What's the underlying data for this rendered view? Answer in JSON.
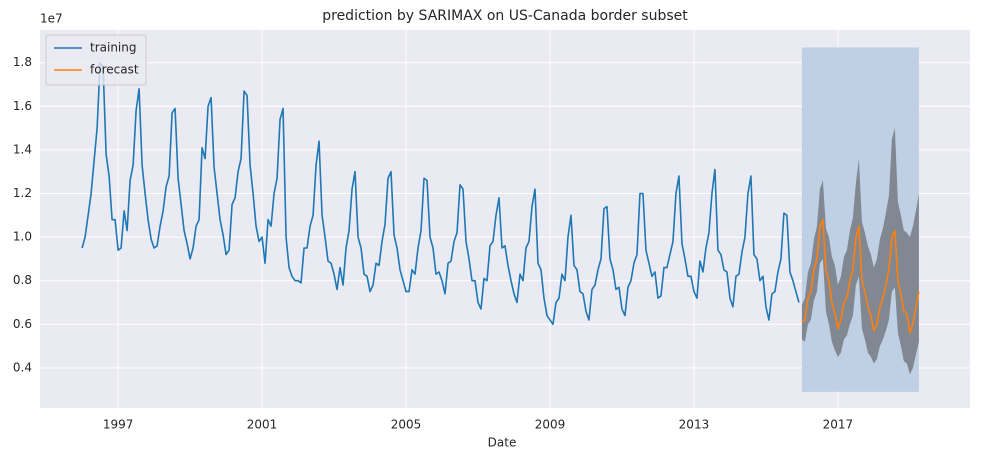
{
  "chart_data": {
    "type": "line",
    "title": "prediction by SARIMAX on US-Canada border subset",
    "x_label": "Date",
    "y_offset_label": "1e7",
    "xlim": [
      1994.83,
      2020.67
    ],
    "ylim": [
      0.216,
      1.95
    ],
    "xticks": [
      1997,
      2001,
      2005,
      2009,
      2013,
      2017
    ],
    "yticks": [
      0.4,
      0.6,
      0.8,
      {
        "value": 1,
        "label": "1.0"
      },
      1.2,
      1.4,
      1.6,
      1.8
    ],
    "grid": true,
    "legend": "upper left",
    "series": [
      {
        "name": "training",
        "color": "#1f77b4",
        "x": [
          1996,
          1996.083,
          1996.167,
          1996.25,
          1996.333,
          1996.417,
          1996.5,
          1996.583,
          1996.667,
          1996.75,
          1996.833,
          1996.917,
          1997,
          1997.083,
          1997.167,
          1997.25,
          1997.333,
          1997.417,
          1997.5,
          1997.583,
          1997.667,
          1997.75,
          1997.833,
          1997.917,
          1998,
          1998.083,
          1998.167,
          1998.25,
          1998.333,
          1998.417,
          1998.5,
          1998.583,
          1998.667,
          1998.75,
          1998.833,
          1998.917,
          1999,
          1999.083,
          1999.167,
          1999.25,
          1999.333,
          1999.417,
          1999.5,
          1999.583,
          1999.667,
          1999.75,
          1999.833,
          1999.917,
          2000,
          2000.083,
          2000.167,
          2000.25,
          2000.333,
          2000.417,
          2000.5,
          2000.583,
          2000.667,
          2000.75,
          2000.833,
          2000.917,
          2001,
          2001.083,
          2001.167,
          2001.25,
          2001.333,
          2001.417,
          2001.5,
          2001.583,
          2001.667,
          2001.75,
          2001.833,
          2001.917,
          2002,
          2002.083,
          2002.167,
          2002.25,
          2002.333,
          2002.417,
          2002.5,
          2002.583,
          2002.667,
          2002.75,
          2002.833,
          2002.917,
          2003,
          2003.083,
          2003.167,
          2003.25,
          2003.333,
          2003.417,
          2003.5,
          2003.583,
          2003.667,
          2003.75,
          2003.833,
          2003.917,
          2004,
          2004.083,
          2004.167,
          2004.25,
          2004.333,
          2004.417,
          2004.5,
          2004.583,
          2004.667,
          2004.75,
          2004.833,
          2004.917,
          2005,
          2005.083,
          2005.167,
          2005.25,
          2005.333,
          2005.417,
          2005.5,
          2005.583,
          2005.667,
          2005.75,
          2005.833,
          2005.917,
          2006,
          2006.083,
          2006.167,
          2006.25,
          2006.333,
          2006.417,
          2006.5,
          2006.583,
          2006.667,
          2006.75,
          2006.833,
          2006.917,
          2007,
          2007.083,
          2007.167,
          2007.25,
          2007.333,
          2007.417,
          2007.5,
          2007.583,
          2007.667,
          2007.75,
          2007.833,
          2007.917,
          2008,
          2008.083,
          2008.167,
          2008.25,
          2008.333,
          2008.417,
          2008.5,
          2008.583,
          2008.667,
          2008.75,
          2008.833,
          2008.917,
          2009,
          2009.083,
          2009.167,
          2009.25,
          2009.333,
          2009.417,
          2009.5,
          2009.583,
          2009.667,
          2009.75,
          2009.833,
          2009.917,
          2010,
          2010.083,
          2010.167,
          2010.25,
          2010.333,
          2010.417,
          2010.5,
          2010.583,
          2010.667,
          2010.75,
          2010.833,
          2010.917,
          2011,
          2011.083,
          2011.167,
          2011.25,
          2011.333,
          2011.417,
          2011.5,
          2011.583,
          2011.667,
          2011.75,
          2011.833,
          2011.917,
          2012,
          2012.083,
          2012.167,
          2012.25,
          2012.333,
          2012.417,
          2012.5,
          2012.583,
          2012.667,
          2012.75,
          2012.833,
          2012.917,
          2013,
          2013.083,
          2013.167,
          2013.25,
          2013.333,
          2013.417,
          2013.5,
          2013.583,
          2013.667,
          2013.75,
          2013.833,
          2013.917,
          2014,
          2014.083,
          2014.167,
          2014.25,
          2014.333,
          2014.417,
          2014.5,
          2014.583,
          2014.667,
          2014.75,
          2014.833,
          2014.917,
          2015,
          2015.083,
          2015.167,
          2015.25,
          2015.333,
          2015.417,
          2015.5,
          2015.583,
          2015.667,
          2015.75,
          2015.833,
          2015.917
        ],
        "values": [
          0.95,
          1.0,
          1.1,
          1.2,
          1.35,
          1.5,
          1.8,
          1.78,
          1.38,
          1.28,
          1.08,
          1.08,
          0.94,
          0.95,
          1.12,
          1.03,
          1.26,
          1.33,
          1.58,
          1.68,
          1.33,
          1.2,
          1.08,
          0.99,
          0.95,
          0.96,
          1.05,
          1.12,
          1.23,
          1.28,
          1.57,
          1.59,
          1.27,
          1.15,
          1.03,
          0.97,
          0.9,
          0.95,
          1.05,
          1.08,
          1.41,
          1.36,
          1.6,
          1.64,
          1.32,
          1.2,
          1.08,
          1.01,
          0.92,
          0.94,
          1.15,
          1.18,
          1.3,
          1.36,
          1.67,
          1.65,
          1.33,
          1.2,
          1.05,
          0.98,
          1.0,
          0.88,
          1.08,
          1.05,
          1.2,
          1.27,
          1.54,
          1.59,
          1.0,
          0.86,
          0.82,
          0.8,
          0.8,
          0.79,
          0.95,
          0.95,
          1.05,
          1.1,
          1.33,
          1.44,
          1.1,
          1.0,
          0.89,
          0.88,
          0.83,
          0.76,
          0.86,
          0.78,
          0.95,
          1.03,
          1.22,
          1.3,
          1.0,
          0.95,
          0.83,
          0.82,
          0.75,
          0.78,
          0.88,
          0.87,
          0.98,
          1.06,
          1.27,
          1.3,
          1.01,
          0.95,
          0.85,
          0.8,
          0.75,
          0.75,
          0.85,
          0.83,
          0.95,
          1.03,
          1.27,
          1.26,
          1.0,
          0.95,
          0.83,
          0.84,
          0.8,
          0.74,
          0.88,
          0.89,
          0.98,
          1.02,
          1.24,
          1.22,
          0.98,
          0.9,
          0.8,
          0.8,
          0.7,
          0.67,
          0.81,
          0.8,
          0.96,
          0.98,
          1.1,
          1.18,
          0.95,
          0.96,
          0.87,
          0.8,
          0.74,
          0.7,
          0.83,
          0.8,
          0.95,
          0.98,
          1.14,
          1.22,
          0.88,
          0.85,
          0.72,
          0.64,
          0.62,
          0.6,
          0.7,
          0.72,
          0.83,
          0.8,
          1.0,
          1.1,
          0.87,
          0.85,
          0.75,
          0.74,
          0.66,
          0.62,
          0.76,
          0.78,
          0.85,
          0.9,
          1.13,
          1.14,
          0.9,
          0.85,
          0.76,
          0.77,
          0.67,
          0.64,
          0.77,
          0.8,
          0.88,
          0.92,
          1.2,
          1.2,
          0.94,
          0.88,
          0.82,
          0.84,
          0.72,
          0.73,
          0.86,
          0.86,
          0.92,
          0.98,
          1.2,
          1.28,
          0.97,
          0.9,
          0.82,
          0.82,
          0.75,
          0.72,
          0.89,
          0.84,
          0.95,
          1.02,
          1.2,
          1.31,
          0.94,
          0.92,
          0.85,
          0.84,
          0.72,
          0.68,
          0.82,
          0.83,
          0.93,
          1.0,
          1.2,
          1.28,
          0.92,
          0.9,
          0.8,
          0.82,
          0.68,
          0.62,
          0.74,
          0.75,
          0.84,
          0.9,
          1.11,
          1.1,
          0.84,
          0.8,
          0.75,
          0.7
        ]
      },
      {
        "name": "forecast",
        "color": "#ff7f0e",
        "x": [
          2016,
          2016.083,
          2016.167,
          2016.25,
          2016.333,
          2016.417,
          2016.5,
          2016.583,
          2016.667,
          2016.75,
          2016.833,
          2016.917,
          2017,
          2017.083,
          2017.167,
          2017.25,
          2017.333,
          2017.417,
          2017.5,
          2017.583,
          2017.667,
          2017.75,
          2017.833,
          2017.917,
          2018,
          2018.083,
          2018.167,
          2018.25,
          2018.333,
          2018.417,
          2018.5,
          2018.583,
          2018.667,
          2018.75,
          2018.833,
          2018.917,
          2019,
          2019.083,
          2019.167,
          2019.25
        ],
        "values": [
          0.61,
          0.62,
          0.72,
          0.75,
          0.85,
          0.9,
          1.05,
          1.08,
          0.85,
          0.8,
          0.7,
          0.65,
          0.58,
          0.62,
          0.7,
          0.72,
          0.8,
          0.85,
          1.0,
          1.05,
          0.8,
          0.75,
          0.68,
          0.64,
          0.57,
          0.6,
          0.68,
          0.72,
          0.78,
          0.85,
          1.0,
          1.03,
          0.8,
          0.74,
          0.66,
          0.65,
          0.56,
          0.6,
          0.68,
          0.75
        ]
      }
    ],
    "confidence_band": {
      "color": "#6e7075",
      "lower": [
        0.53,
        0.52,
        0.6,
        0.62,
        0.71,
        0.75,
        0.88,
        0.9,
        0.66,
        0.6,
        0.52,
        0.48,
        0.45,
        0.47,
        0.53,
        0.55,
        0.6,
        0.64,
        0.78,
        0.82,
        0.58,
        0.53,
        0.47,
        0.45,
        0.42,
        0.44,
        0.5,
        0.53,
        0.57,
        0.62,
        0.75,
        0.77,
        0.56,
        0.5,
        0.43,
        0.42,
        0.37,
        0.4,
        0.46,
        0.52
      ],
      "upper": [
        0.69,
        0.72,
        0.84,
        0.88,
        0.99,
        1.05,
        1.22,
        1.26,
        1.04,
        1.0,
        0.91,
        0.87,
        0.78,
        0.82,
        0.91,
        0.94,
        1.03,
        1.09,
        1.25,
        1.36,
        1.07,
        1.02,
        0.96,
        0.92,
        0.86,
        0.9,
        0.99,
        1.04,
        1.11,
        1.19,
        1.45,
        1.5,
        1.16,
        1.1,
        1.03,
        1.02,
        1.0,
        1.05,
        1.12,
        1.2
      ]
    },
    "highlight": {
      "color": "#bfd0e5",
      "x": [
        2016,
        2019.25
      ],
      "y": [
        0.29,
        1.87
      ]
    }
  }
}
